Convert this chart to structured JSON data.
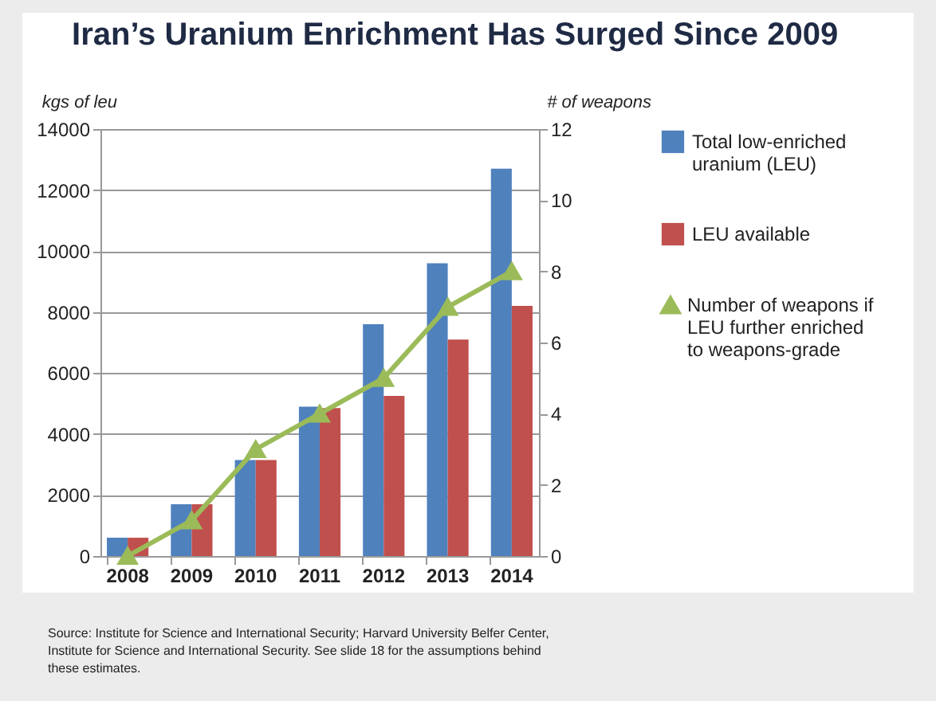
{
  "chart_data": {
    "type": "bar",
    "title": "Iran’s Uranium Enrichment Has Surged Since 2009",
    "ylabel": "kgs of leu",
    "y2label": "# of weapons",
    "categories": [
      "2008",
      "2009",
      "2010",
      "2011",
      "2012",
      "2013",
      "2014"
    ],
    "series": [
      {
        "name": "Total low-enriched uranium (LEU)",
        "color": "#4f81bd",
        "values": [
          600,
          1700,
          3150,
          4900,
          7600,
          9600,
          12700
        ]
      },
      {
        "name": "LEU available",
        "color": "#c0504d",
        "values": [
          600,
          1700,
          3150,
          4850,
          5250,
          7100,
          8200
        ]
      },
      {
        "name": "Number of weapons if LEU further enriched to weapons-grade",
        "type": "line",
        "axis": "y2",
        "color": "#9bbb59",
        "marker": "triangle",
        "values": [
          0,
          1,
          3,
          4,
          5,
          7,
          8
        ]
      }
    ],
    "ylim": [
      0,
      14000
    ],
    "yticks": [
      0,
      2000,
      4000,
      6000,
      8000,
      10000,
      12000,
      14000
    ],
    "y2lim": [
      0,
      12
    ],
    "y2ticks": [
      0,
      2,
      4,
      6,
      8,
      10,
      12
    ],
    "grid": "y",
    "legend": "right",
    "annotations": [
      "Source: Institute for Science and International Security; Harvard University Belfer Center, Institute for Science and International Security.  See slide 18 for the assumptions behind these estimates."
    ]
  }
}
